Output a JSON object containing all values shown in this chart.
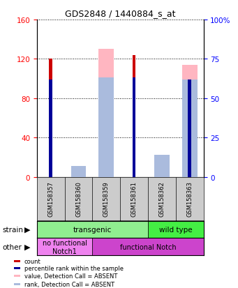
{
  "title": "GDS2848 / 1440884_s_at",
  "samples": [
    "GSM158357",
    "GSM158360",
    "GSM158359",
    "GSM158361",
    "GSM158362",
    "GSM158363"
  ],
  "count_values": [
    120,
    0,
    0,
    124,
    0,
    0
  ],
  "percentile_values": [
    62,
    0,
    0,
    63,
    0,
    62
  ],
  "value_absent": [
    0,
    0,
    130,
    0,
    12,
    114
  ],
  "rank_absent": [
    0,
    7,
    63,
    0,
    14,
    62
  ],
  "ylim_left": [
    0,
    160
  ],
  "ylim_right": [
    0,
    100
  ],
  "yticks_left": [
    0,
    40,
    80,
    120,
    160
  ],
  "yticks_right": [
    0,
    25,
    50,
    75,
    100
  ],
  "yticklabels_right": [
    "0",
    "25",
    "50",
    "75",
    "100%"
  ],
  "strain_groups": [
    {
      "label": "transgenic",
      "span": [
        0,
        4
      ],
      "color": "#90EE90"
    },
    {
      "label": "wild type",
      "span": [
        4,
        6
      ],
      "color": "#44EE44"
    }
  ],
  "other_groups": [
    {
      "label": "no functional\nNotch1",
      "span": [
        0,
        2
      ],
      "color": "#EE82EE"
    },
    {
      "label": "functional Notch",
      "span": [
        2,
        6
      ],
      "color": "#CC44CC"
    }
  ],
  "count_color": "#CC0000",
  "percentile_color": "#000099",
  "value_absent_color": "#FFB6C1",
  "rank_absent_color": "#AABBDD",
  "wide_bar_width": 0.55,
  "narrow_bar_width": 0.12
}
